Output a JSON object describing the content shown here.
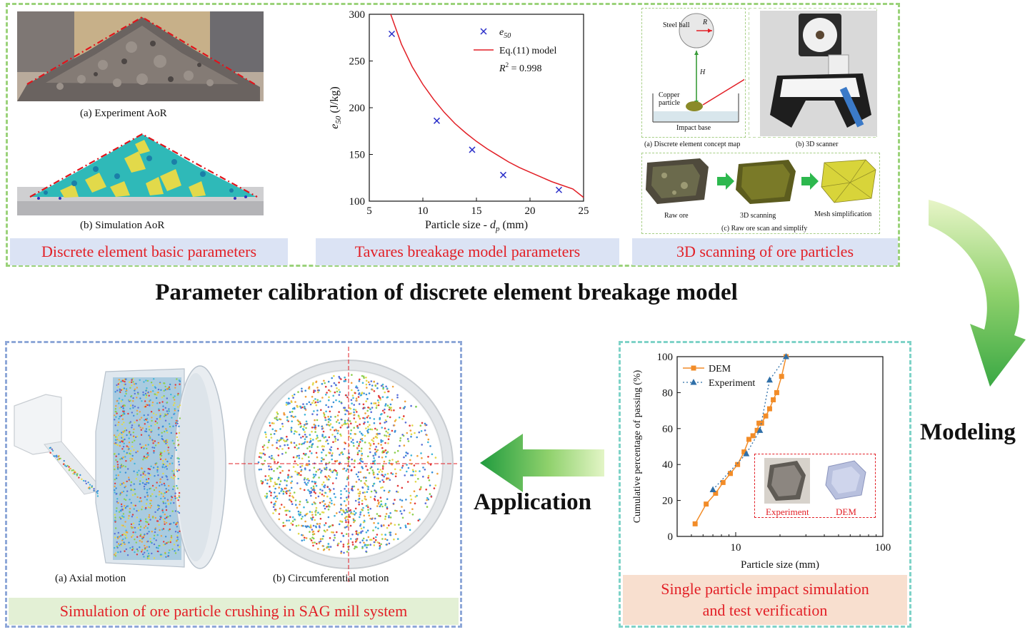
{
  "main_title": "Parameter calibration of discrete element breakage model",
  "labels": {
    "modeling": "Modeling",
    "application": "Application"
  },
  "top_panel": {
    "aor": {
      "experiment_caption": "(a)  Experiment AoR",
      "simulation_caption": "(b)  Simulation AoR",
      "bar": "Discrete element basic parameters"
    },
    "tavares": {
      "bar": "Tavares breakage model parameters"
    },
    "scan": {
      "steel_ball": "Steel ball",
      "radius_label": "R",
      "height_label": "H",
      "copper_particle": "Copper particle",
      "impact_base": "Impact base",
      "caption_a": "(a) Discrete element concept map",
      "caption_b": "(b) 3D scanner",
      "raw_ore": "Raw ore",
      "scanning": "3D scanning",
      "mesh": "Mesh simplification",
      "caption_c": "(c) Raw ore scan and simplify",
      "bar": "3D scanning of ore particles"
    }
  },
  "bottom_left": {
    "caption_a": "(a)  Axial motion",
    "caption_b": "(b) Circumferential motion",
    "bar": "Simulation of ore particle crushing in SAG mill system"
  },
  "bottom_right": {
    "inset_experiment": "Experiment",
    "inset_dem": "DEM",
    "bar_line1": "Single particle impact simulation",
    "bar_line2": "and test verification"
  },
  "colors": {
    "red_text": "#e21f26",
    "green_arrow": "#4caf50",
    "series_orange": "#f28c28",
    "series_blue": "#2f6fa8"
  },
  "chart_data": [
    {
      "type": "scatter",
      "ylabel": "e50 (J/kg)",
      "xlabel": "Particle size - dp (mm)",
      "xlim": [
        5,
        25
      ],
      "ylim": [
        100,
        300
      ],
      "xticks": [
        5,
        10,
        15,
        20,
        25
      ],
      "yticks": [
        100,
        150,
        200,
        250,
        300
      ],
      "series": [
        {
          "name": "e50",
          "x": [
            7.1,
            11.3,
            14.6,
            17.5,
            22.7
          ],
          "y": [
            279,
            186,
            155,
            128,
            112
          ]
        },
        {
          "name": "Eq.(11) model",
          "x": [
            7,
            8,
            9,
            10,
            11,
            12,
            13,
            14,
            15,
            16,
            17,
            18,
            19,
            20,
            21,
            22,
            23,
            24,
            25
          ],
          "y": [
            300,
            268,
            244,
            225,
            209,
            195,
            183,
            173,
            164,
            156,
            149,
            142,
            136,
            131,
            126,
            121,
            117,
            113,
            104
          ]
        }
      ],
      "annotation": "R2 = 0.998",
      "legend_position": "top-right"
    },
    {
      "type": "line",
      "xlabel": "Particle size (mm)",
      "ylabel": "Cumulative percentage of passing (%)",
      "xscale": "log",
      "xlim": [
        4,
        100
      ],
      "ylim": [
        0,
        100
      ],
      "xticks": [
        10,
        100
      ],
      "yticks": [
        0,
        20,
        40,
        60,
        80,
        100
      ],
      "series": [
        {
          "name": "DEM",
          "x": [
            5.3,
            6.3,
            7.3,
            8.2,
            9.2,
            10.3,
            11.4,
            12.3,
            13.1,
            14.0,
            14.4,
            15.0,
            16.0,
            17.0,
            18.0,
            19.0,
            20.5,
            22.0
          ],
          "y": [
            7,
            18,
            24,
            30,
            35,
            40,
            47,
            54,
            56,
            59,
            63,
            63,
            67,
            71,
            76,
            80,
            89,
            100
          ]
        },
        {
          "name": "Experiment",
          "x": [
            7.0,
            11.8,
            14.6,
            17.0,
            22.0
          ],
          "y": [
            26,
            46,
            59,
            87,
            100
          ]
        }
      ],
      "legend_position": "top-left"
    }
  ]
}
